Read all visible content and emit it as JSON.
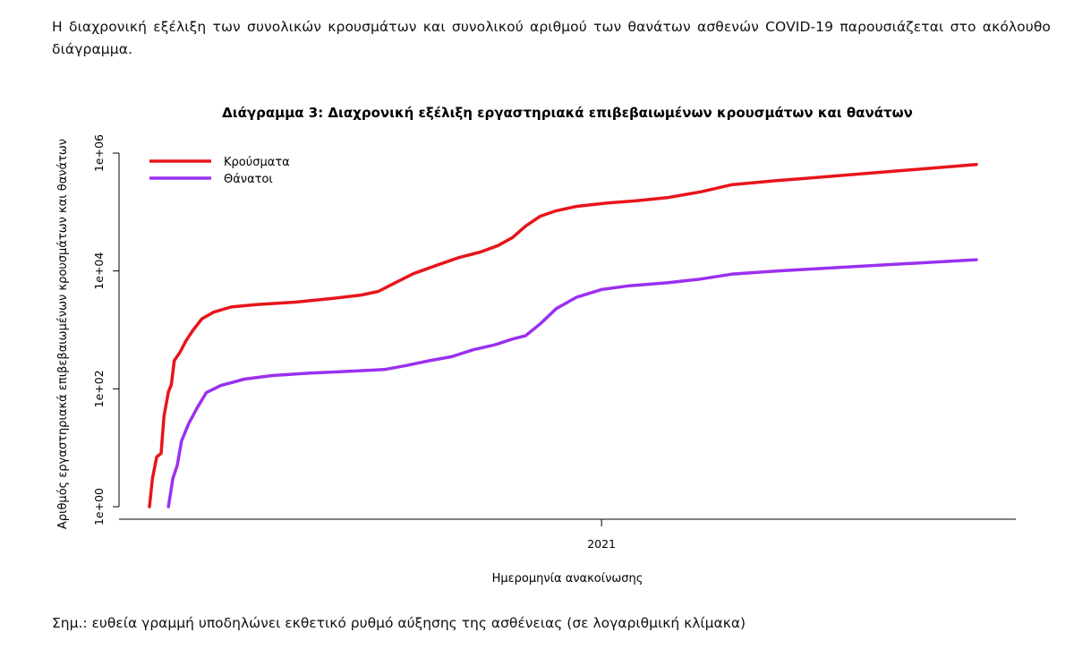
{
  "document": {
    "intro": "Η διαχρονική εξέλιξη των συνολικών κρουσμάτων και συνολικού αριθμού των θανάτων ασθενών COVID-19 παρουσιάζεται στο ακόλουθο διάγραμμα.",
    "note": "Σημ.: ευθεία γραμμή υποδηλώνει εκθετικό ρυθμό αύξησης της ασθένειας (σε λογαριθμική κλίμακα)"
  },
  "chart_data": {
    "type": "line",
    "title": "Διάγραμμα 3: Διαχρονική εξέλιξη εργαστηριακά επιβεβαιωμένων κρουσμάτων και θανάτων",
    "xlabel": "Ημερομηνία ανακοίνωσης",
    "ylabel": "Αριθμός εργαστηριακά επιβεβαιωμένων κρουσμάτων και θανάτων",
    "yscale": "log",
    "ylim": [
      1,
      1000000
    ],
    "xlim": [
      "2020-02-26",
      "2021-09-20"
    ],
    "x_ticks": [
      {
        "value": "2021-01-01",
        "label": "2021"
      }
    ],
    "y_ticks": [
      {
        "value": 1,
        "label": "1e+00"
      },
      {
        "value": 100,
        "label": "1e+02"
      },
      {
        "value": 10000,
        "label": "1e+04"
      },
      {
        "value": 1000000,
        "label": "1e+06"
      }
    ],
    "grid": false,
    "legend_position": "top-left",
    "series": [
      {
        "name": "Κρούσματα",
        "color": "#e8141b",
        "points": [
          [
            "2020-02-26",
            1
          ],
          [
            "2020-02-28",
            3
          ],
          [
            "2020-03-02",
            7
          ],
          [
            "2020-03-05",
            8
          ],
          [
            "2020-03-07",
            35
          ],
          [
            "2020-03-10",
            89
          ],
          [
            "2020-03-12",
            117
          ],
          [
            "2020-03-14",
            300
          ],
          [
            "2020-03-18",
            420
          ],
          [
            "2020-03-22",
            650
          ],
          [
            "2020-03-27",
            1000
          ],
          [
            "2020-04-02",
            1550
          ],
          [
            "2020-04-10",
            2000
          ],
          [
            "2020-04-22",
            2450
          ],
          [
            "2020-05-10",
            2700
          ],
          [
            "2020-06-05",
            2960
          ],
          [
            "2020-07-01",
            3430
          ],
          [
            "2020-07-20",
            3900
          ],
          [
            "2020-08-01",
            4500
          ],
          [
            "2020-08-12",
            6200
          ],
          [
            "2020-08-25",
            9000
          ],
          [
            "2020-09-10",
            12500
          ],
          [
            "2020-09-25",
            16800
          ],
          [
            "2020-10-10",
            21000
          ],
          [
            "2020-10-22",
            27000
          ],
          [
            "2020-11-01",
            37000
          ],
          [
            "2020-11-10",
            58000
          ],
          [
            "2020-11-20",
            85000
          ],
          [
            "2020-12-01",
            105000
          ],
          [
            "2020-12-15",
            125000
          ],
          [
            "2021-01-05",
            142000
          ],
          [
            "2021-01-25",
            155000
          ],
          [
            "2021-02-15",
            175000
          ],
          [
            "2021-03-10",
            220000
          ],
          [
            "2021-03-31",
            290000
          ],
          [
            "2021-05-01",
            340000
          ],
          [
            "2021-09-15",
            640000
          ]
        ]
      },
      {
        "name": "Θάνατοι",
        "color": "#9b30f0",
        "points": [
          [
            "2020-03-10",
            1
          ],
          [
            "2020-03-13",
            3
          ],
          [
            "2020-03-16",
            5
          ],
          [
            "2020-03-19",
            13
          ],
          [
            "2020-03-24",
            26
          ],
          [
            "2020-03-30",
            49
          ],
          [
            "2020-04-05",
            86
          ],
          [
            "2020-04-15",
            114
          ],
          [
            "2020-05-01",
            146
          ],
          [
            "2020-05-20",
            168
          ],
          [
            "2020-06-15",
            185
          ],
          [
            "2020-07-15",
            200
          ],
          [
            "2020-08-05",
            212
          ],
          [
            "2020-08-20",
            249
          ],
          [
            "2020-09-05",
            300
          ],
          [
            "2020-09-20",
            350
          ],
          [
            "2020-10-05",
            460
          ],
          [
            "2020-10-20",
            560
          ],
          [
            "2020-11-01",
            700
          ],
          [
            "2020-11-10",
            800
          ],
          [
            "2020-11-20",
            1270
          ],
          [
            "2020-12-01",
            2300
          ],
          [
            "2020-12-15",
            3600
          ],
          [
            "2021-01-01",
            4850
          ],
          [
            "2021-01-20",
            5600
          ],
          [
            "2021-02-15",
            6300
          ],
          [
            "2021-03-10",
            7300
          ],
          [
            "2021-03-31",
            8800
          ],
          [
            "2021-05-01",
            10000
          ],
          [
            "2021-09-15",
            15500
          ]
        ]
      }
    ]
  }
}
